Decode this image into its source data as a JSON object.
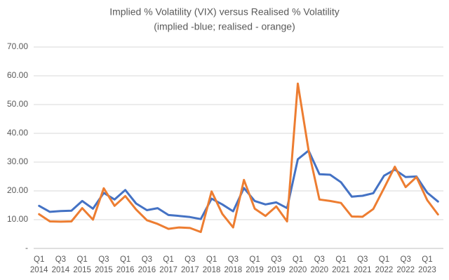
{
  "chart_data": {
    "type": "line",
    "title": "Implied % Volatility (VIX) versus Realised % Volatility",
    "subtitle": "(implied -blue; realised - orange)",
    "categories": [
      "Q1 2014",
      null,
      "Q3 2014",
      null,
      "Q1 2015",
      null,
      "Q3 2015",
      null,
      "Q1 2016",
      null,
      "Q3 2016",
      null,
      "Q1 2017",
      null,
      "Q3 2017",
      null,
      "Q1 2018",
      null,
      "Q3 2018",
      null,
      "Q1 2019",
      null,
      "Q3 2019",
      null,
      "Q1 2020",
      null,
      "Q3 2020",
      null,
      "Q1 2021",
      null,
      "Q3 2021",
      null,
      "Q1 2022",
      null,
      "Q3 2022",
      null,
      "Q1 2023",
      null
    ],
    "series": [
      {
        "color": "#4472c4",
        "values": [
          14.8,
          12.7,
          13.0,
          13.1,
          16.5,
          13.8,
          19.3,
          17.0,
          20.3,
          15.6,
          13.3,
          14.0,
          11.6,
          11.3,
          10.9,
          10.2,
          17.3,
          15.3,
          12.9,
          21.0,
          16.5,
          15.3,
          16.0,
          14.0,
          31.0,
          34.0,
          25.8,
          25.6,
          23.0,
          18.0,
          18.3,
          19.2,
          25.3,
          27.4,
          24.8,
          25.0,
          19.4,
          16.3
        ]
      },
      {
        "color": "#ed7d31",
        "values": [
          11.9,
          9.4,
          9.3,
          9.4,
          14.0,
          10.0,
          20.9,
          14.8,
          18.2,
          13.5,
          9.8,
          8.5,
          6.8,
          7.3,
          7.1,
          5.7,
          19.8,
          12.0,
          7.3,
          23.8,
          13.8,
          11.3,
          14.6,
          9.4,
          57.3,
          34.0,
          17.0,
          16.5,
          15.8,
          11.1,
          11.0,
          13.7,
          21.0,
          28.4,
          21.3,
          24.8,
          16.8,
          11.8
        ]
      }
    ],
    "ylim": [
      0,
      70
    ],
    "yticks": [
      {
        "value": 0,
        "label": "-"
      },
      {
        "value": 10,
        "label": "10.00"
      },
      {
        "value": 20,
        "label": "20.00"
      },
      {
        "value": 30,
        "label": "30.00"
      },
      {
        "value": 40,
        "label": "40.00"
      },
      {
        "value": 50,
        "label": "50.00"
      },
      {
        "value": 60,
        "label": "60.00"
      },
      {
        "value": 70,
        "label": "70.00"
      }
    ],
    "grid": true
  }
}
